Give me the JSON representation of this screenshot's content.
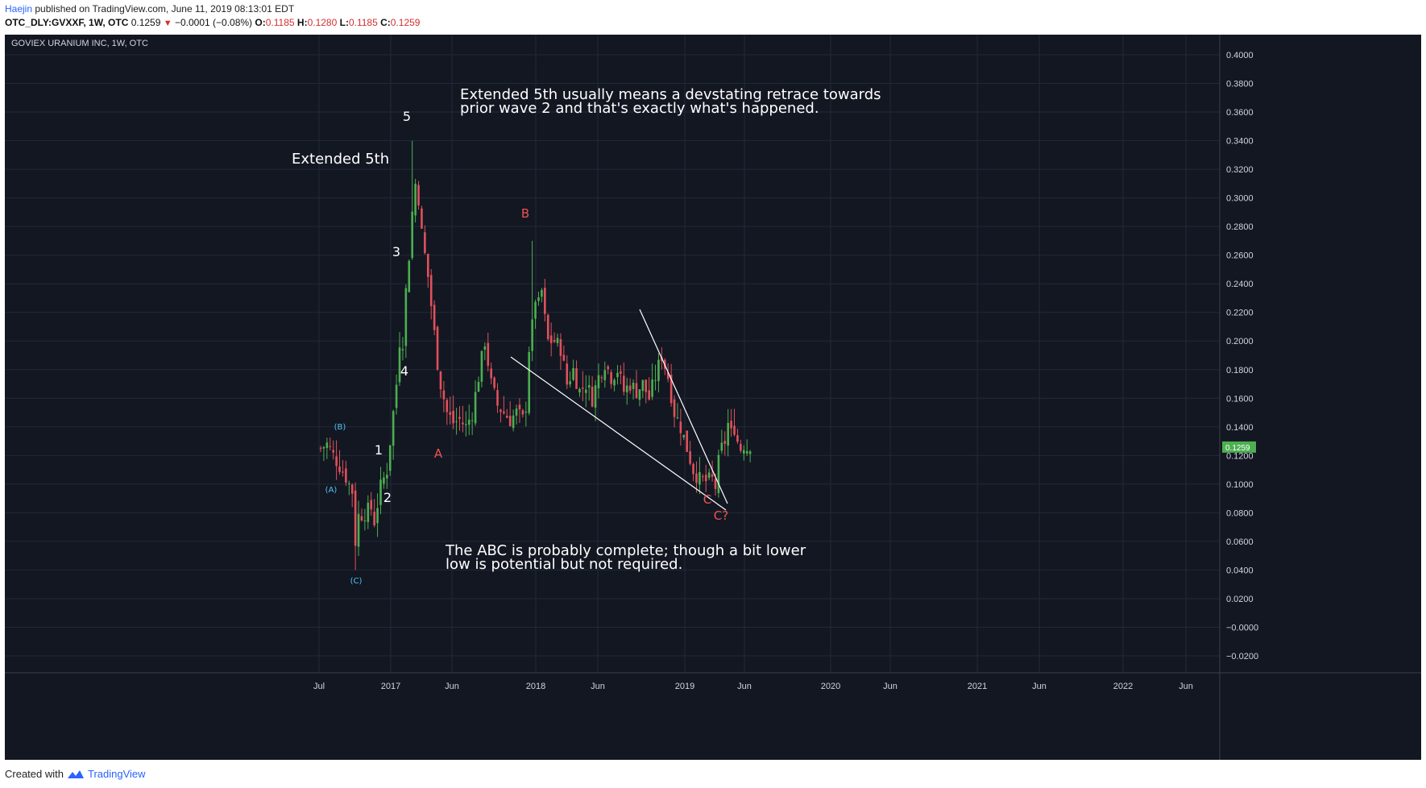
{
  "header": {
    "author": "Haejin",
    "published_text": "published on TradingView.com, June 11, 2019 08:13:01 EDT",
    "symbol": "OTC_DLY:GVXXF, 1W, OTC",
    "last": "0.1259",
    "change": "−0.0001 (−0.08%)",
    "open_label": "O:",
    "open": "0.1185",
    "high_label": "H:",
    "high": "0.1280",
    "low_label": "L:",
    "low": "0.1185",
    "close_label": "C:",
    "close": "0.1259"
  },
  "footer": {
    "created_with": "Created with",
    "brand": "TradingView"
  },
  "colors": {
    "background": "#131722",
    "grid": "#232838",
    "up": "#4caf50",
    "down": "#e0515b",
    "axis_text": "#d1d4dc",
    "wave_white": "#ffffff",
    "wave_red": "#ef5350",
    "wave_cyan": "#4fc3f7",
    "price_tag": "#4caf50"
  },
  "chart_data": {
    "type": "candlestick",
    "title": "GOVIEX URANIUM INC, 1W, OTC",
    "ylim": [
      -0.02,
      0.41
    ],
    "yticks": [
      "0.4000",
      "0.3800",
      "0.3600",
      "0.3400",
      "0.3200",
      "0.3000",
      "0.2800",
      "0.2600",
      "0.2400",
      "0.2200",
      "0.2000",
      "0.1800",
      "0.1600",
      "0.1400",
      "0.1200",
      "0.1000",
      "0.0800",
      "0.0600",
      "0.0400",
      "0.0200",
      "−0.0000",
      "−0.0200"
    ],
    "xticks": [
      "Jul",
      "2017",
      "Jun",
      "2018",
      "Jun",
      "2019",
      "Jun",
      "2020",
      "Jun",
      "2021",
      "Jun",
      "2022",
      "Jun"
    ],
    "grid": true,
    "last_price_tag": "0.1259",
    "annotations": {
      "top_note": [
        "Extended 5th usually means a devstating retrace towards",
        "prior wave 2 and that's exactly what's happened."
      ],
      "bottom_note": [
        "The ABC is probably complete; though a bit lower",
        "low is potential but not required."
      ],
      "extended": "Extended 5th",
      "waves_white": [
        "1",
        "2",
        "3",
        "4",
        "5"
      ],
      "waves_red": [
        "A",
        "B",
        "C",
        "C?"
      ],
      "waves_cyan": [
        "(A)",
        "(B)",
        "(C)"
      ]
    },
    "anchors": [
      [
        0,
        0.125
      ],
      [
        2,
        0.128
      ],
      [
        4,
        0.12
      ],
      [
        6,
        0.113
      ],
      [
        8,
        0.105
      ],
      [
        10,
        0.095
      ],
      [
        11,
        0.06
      ],
      [
        12,
        0.078
      ],
      [
        14,
        0.08
      ],
      [
        16,
        0.083
      ],
      [
        17,
        0.074
      ],
      [
        19,
        0.098
      ],
      [
        21,
        0.11
      ],
      [
        22,
        0.13
      ],
      [
        23,
        0.15
      ],
      [
        24,
        0.17
      ],
      [
        25,
        0.2
      ],
      [
        26,
        0.2
      ],
      [
        27,
        0.235
      ],
      [
        28,
        0.26
      ],
      [
        29,
        0.29
      ],
      [
        30,
        0.31
      ],
      [
        31,
        0.3
      ],
      [
        32,
        0.275
      ],
      [
        33,
        0.26
      ],
      [
        34,
        0.245
      ],
      [
        35,
        0.225
      ],
      [
        36,
        0.205
      ],
      [
        37,
        0.185
      ],
      [
        38,
        0.17
      ],
      [
        39,
        0.16
      ],
      [
        40,
        0.15
      ],
      [
        42,
        0.143
      ],
      [
        44,
        0.145
      ],
      [
        46,
        0.14
      ],
      [
        48,
        0.15
      ],
      [
        50,
        0.175
      ],
      [
        52,
        0.2
      ],
      [
        54,
        0.17
      ],
      [
        56,
        0.155
      ],
      [
        58,
        0.15
      ],
      [
        60,
        0.145
      ],
      [
        62,
        0.15
      ],
      [
        64,
        0.145
      ],
      [
        65,
        0.155
      ],
      [
        66,
        0.195
      ],
      [
        67,
        0.21
      ],
      [
        68,
        0.23
      ],
      [
        69,
        0.225
      ],
      [
        70,
        0.235
      ],
      [
        71,
        0.215
      ],
      [
        72,
        0.2
      ],
      [
        74,
        0.2
      ],
      [
        76,
        0.195
      ],
      [
        78,
        0.17
      ],
      [
        80,
        0.18
      ],
      [
        82,
        0.165
      ],
      [
        84,
        0.17
      ],
      [
        86,
        0.16
      ],
      [
        88,
        0.175
      ],
      [
        90,
        0.185
      ],
      [
        92,
        0.175
      ],
      [
        94,
        0.18
      ],
      [
        96,
        0.165
      ],
      [
        98,
        0.17
      ],
      [
        100,
        0.165
      ],
      [
        102,
        0.17
      ],
      [
        104,
        0.16
      ],
      [
        106,
        0.175
      ],
      [
        108,
        0.19
      ],
      [
        110,
        0.175
      ],
      [
        112,
        0.15
      ],
      [
        114,
        0.14
      ],
      [
        116,
        0.125
      ],
      [
        118,
        0.11
      ],
      [
        120,
        0.103
      ],
      [
        122,
        0.102
      ],
      [
        124,
        0.103
      ],
      [
        125,
        0.098
      ],
      [
        126,
        0.115
      ],
      [
        127,
        0.125
      ],
      [
        128,
        0.13
      ],
      [
        129,
        0.142
      ],
      [
        130,
        0.135
      ],
      [
        131,
        0.14
      ],
      [
        132,
        0.13
      ],
      [
        133,
        0.125
      ],
      [
        134,
        0.128
      ],
      [
        135,
        0.125
      ],
      [
        136,
        0.128
      ]
    ]
  }
}
